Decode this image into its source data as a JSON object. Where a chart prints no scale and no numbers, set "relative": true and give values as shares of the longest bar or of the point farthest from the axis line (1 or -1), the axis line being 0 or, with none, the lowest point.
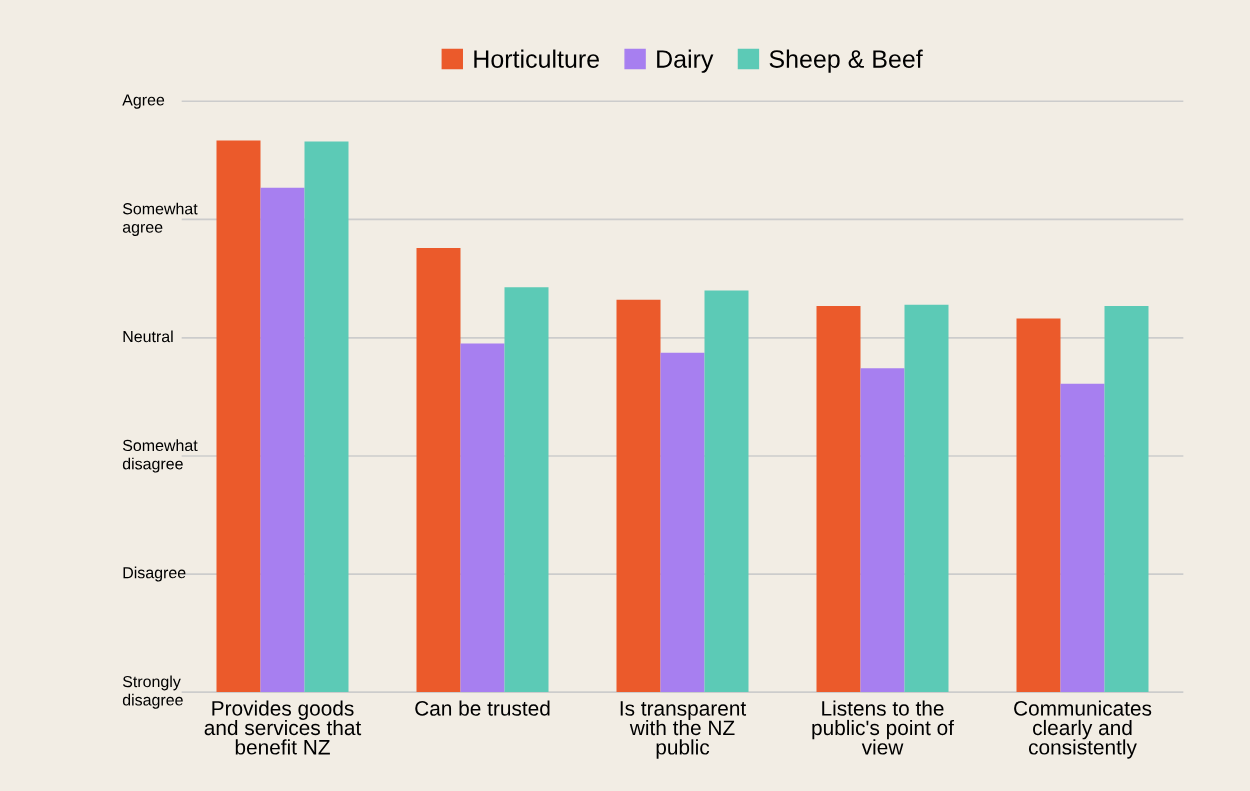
{
  "chart_data": {
    "type": "bar",
    "relative": true,
    "categories": [
      "Provides goods\nand services that\nbenefit NZ",
      "Can be trusted",
      "Is transparent\nwith the NZ\npublic",
      "Listens to the\npublic's point of\nview",
      "Communicates\nclearly and\nconsistently"
    ],
    "series": [
      {
        "name": "Horticulture",
        "color": "#eb5a2b",
        "values": [
          1,
          0.805,
          0.711,
          0.7,
          0.677
        ]
      },
      {
        "name": "Dairy",
        "color": "#a77ff0",
        "values": [
          0.914,
          0.632,
          0.615,
          0.587,
          0.559
        ]
      },
      {
        "name": "Sheep & Beef",
        "color": "#5ccab6",
        "values": [
          0.998,
          0.734,
          0.728,
          0.702,
          0.7
        ]
      }
    ],
    "ref_lines": [
      {
        "axis": "y",
        "value": 0,
        "label": "Strongly\ndisagree",
        "color": "#cccccc"
      },
      {
        "axis": "y",
        "value": 0.214,
        "label": "Disagree",
        "color": "#cccccc"
      },
      {
        "axis": "y",
        "value": 0.428,
        "label": "Somewhat\ndisagree",
        "color": "#cccccc"
      },
      {
        "axis": "y",
        "value": 0.642,
        "label": "Neutral",
        "color": "#cccccc"
      },
      {
        "axis": "y",
        "value": 0.857,
        "label": "Somewhat\nagree",
        "color": "#cccccc"
      },
      {
        "axis": "y",
        "value": 1.071,
        "label": "Agree",
        "color": "#cccccc"
      }
    ],
    "legend": "top"
  }
}
